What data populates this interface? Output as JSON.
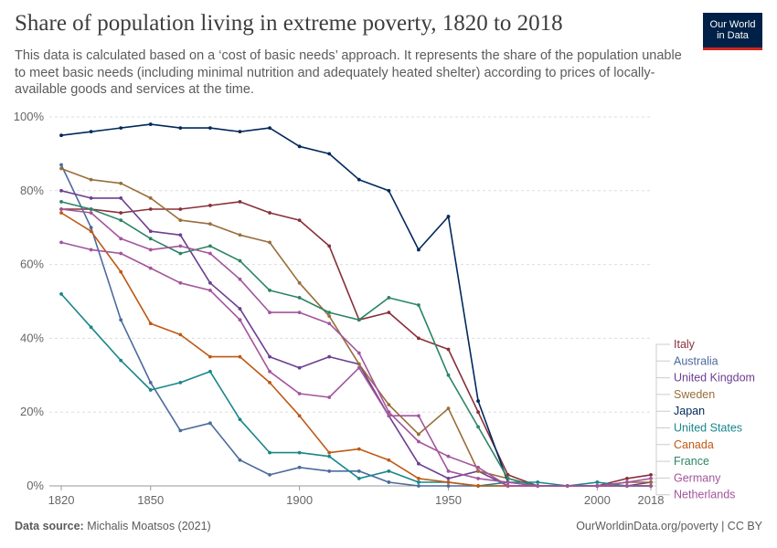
{
  "header": {
    "title": "Share of population living in extreme poverty, 1820 to 2018",
    "subtitle": "This data is calculated based on a ‘cost of basic needs’ approach. It represents the share of the population unable to meet basic needs (including minimal nutrition and adequately heated shelter) according to prices of locally-available goods and services at the time.",
    "logo_line1": "Our World",
    "logo_line2": "in Data"
  },
  "footer": {
    "source_label": "Data source:",
    "source_value": "Michalis Moatsos (2021)",
    "link": "OurWorldinData.org/poverty",
    "separator": " | ",
    "license": "CC BY"
  },
  "chart_data": {
    "type": "line",
    "title": "Share of population living in extreme poverty, 1820 to 2018",
    "xlabel": "",
    "ylabel": "",
    "xlim": [
      1816,
      2018
    ],
    "ylim": [
      0,
      100
    ],
    "x_ticks": [
      "1820",
      "1850",
      "1900",
      "1950",
      "2000",
      "2018"
    ],
    "y_ticks": [
      "0%",
      "20%",
      "40%",
      "60%",
      "80%",
      "100%"
    ],
    "grid": "horizontal dashed",
    "legend_position": "right",
    "series": [
      {
        "name": "Italy",
        "color": "#883039",
        "x": [
          1820,
          1830,
          1840,
          1850,
          1860,
          1870,
          1880,
          1890,
          1900,
          1910,
          1920,
          1930,
          1940,
          1950,
          1960,
          1970,
          1980,
          1990,
          2000,
          2010,
          2018
        ],
        "y": [
          75,
          75,
          74,
          75,
          75,
          76,
          77,
          74,
          72,
          65,
          45,
          47,
          40,
          37,
          20,
          3,
          0,
          0,
          0,
          2,
          3
        ]
      },
      {
        "name": "Australia",
        "color": "#4c6a9c",
        "x": [
          1820,
          1830,
          1840,
          1850,
          1860,
          1870,
          1880,
          1890,
          1900,
          1910,
          1920,
          1930,
          1940,
          1950,
          1960,
          1970,
          1980,
          1990,
          2000,
          2010,
          2018
        ],
        "y": [
          87,
          70,
          45,
          28,
          15,
          17,
          7,
          3,
          5,
          4,
          4,
          1,
          0,
          0,
          0,
          0,
          0,
          0,
          0,
          0,
          0
        ]
      },
      {
        "name": "United Kingdom",
        "color": "#6d3e91",
        "x": [
          1820,
          1830,
          1840,
          1850,
          1860,
          1870,
          1880,
          1890,
          1900,
          1910,
          1920,
          1930,
          1940,
          1950,
          1960,
          1970,
          1980,
          1990,
          2000,
          2010,
          2018
        ],
        "y": [
          80,
          78,
          78,
          69,
          68,
          55,
          48,
          35,
          32,
          35,
          33,
          19,
          6,
          2,
          4,
          0,
          0,
          0,
          0,
          0,
          1
        ]
      },
      {
        "name": "Sweden",
        "color": "#996d39",
        "x": [
          1820,
          1830,
          1840,
          1850,
          1860,
          1870,
          1880,
          1890,
          1900,
          1910,
          1920,
          1930,
          1940,
          1950,
          1960,
          1970,
          1980,
          1990,
          2000,
          2010,
          2018
        ],
        "y": [
          86,
          83,
          82,
          78,
          72,
          71,
          68,
          66,
          55,
          46,
          33,
          22,
          14,
          21,
          4,
          2,
          0,
          0,
          0,
          1,
          1
        ]
      },
      {
        "name": "Japan",
        "color": "#00295b",
        "x": [
          1820,
          1830,
          1840,
          1850,
          1860,
          1870,
          1880,
          1890,
          1900,
          1910,
          1920,
          1930,
          1940,
          1950,
          1960,
          1970,
          1980,
          1990,
          2000,
          2010,
          2018
        ],
        "y": [
          95,
          96,
          97,
          98,
          97,
          97,
          96,
          97,
          92,
          90,
          83,
          80,
          64,
          73,
          23,
          1,
          0,
          0,
          0,
          0,
          0
        ]
      },
      {
        "name": "United States",
        "color": "#18868b",
        "x": [
          1820,
          1830,
          1840,
          1850,
          1860,
          1870,
          1880,
          1890,
          1900,
          1910,
          1920,
          1930,
          1940,
          1950,
          1960,
          1970,
          1980,
          1990,
          2000,
          2010,
          2018
        ],
        "y": [
          52,
          43,
          34,
          26,
          28,
          31,
          18,
          9,
          9,
          8,
          2,
          4,
          1,
          1,
          0,
          1,
          1,
          0,
          1,
          0,
          0
        ]
      },
      {
        "name": "Canada",
        "color": "#be5915",
        "x": [
          1820,
          1830,
          1840,
          1850,
          1860,
          1870,
          1880,
          1890,
          1900,
          1910,
          1920,
          1930,
          1940,
          1950,
          1960,
          1970,
          1980,
          1990,
          2000,
          2010,
          2018
        ],
        "y": [
          74,
          69,
          58,
          44,
          41,
          35,
          35,
          28,
          19,
          9,
          10,
          7,
          2,
          1,
          0,
          0,
          0,
          0,
          0,
          0,
          0
        ]
      },
      {
        "name": "France",
        "color": "#2c8465",
        "x": [
          1820,
          1830,
          1840,
          1850,
          1860,
          1870,
          1880,
          1890,
          1900,
          1910,
          1920,
          1930,
          1940,
          1950,
          1960,
          1970,
          1980,
          1990,
          2000,
          2010,
          2018
        ],
        "y": [
          77,
          75,
          72,
          67,
          63,
          65,
          61,
          53,
          51,
          47,
          45,
          51,
          49,
          30,
          16,
          2,
          0,
          0,
          0,
          0,
          0
        ]
      },
      {
        "name": "Germany",
        "color": "#a2559c",
        "x": [
          1820,
          1830,
          1840,
          1850,
          1860,
          1870,
          1880,
          1890,
          1900,
          1910,
          1920,
          1930,
          1940,
          1950,
          1960,
          1970,
          1980,
          1990,
          2000,
          2010,
          2018
        ],
        "y": [
          66,
          64,
          63,
          59,
          55,
          53,
          45,
          31,
          25,
          24,
          32,
          19,
          19,
          4,
          2,
          1,
          0,
          0,
          0,
          0,
          0
        ]
      },
      {
        "name": "Netherlands",
        "color": "#a2559c",
        "x": [
          1820,
          1830,
          1840,
          1850,
          1860,
          1870,
          1880,
          1890,
          1900,
          1910,
          1920,
          1930,
          1940,
          1950,
          1960,
          1970,
          1980,
          1990,
          2000,
          2010,
          2018
        ],
        "y": [
          75,
          74,
          67,
          64,
          65,
          63,
          56,
          47,
          47,
          44,
          36,
          20,
          12,
          8,
          5,
          0,
          0,
          0,
          0,
          1,
          2
        ]
      }
    ]
  }
}
